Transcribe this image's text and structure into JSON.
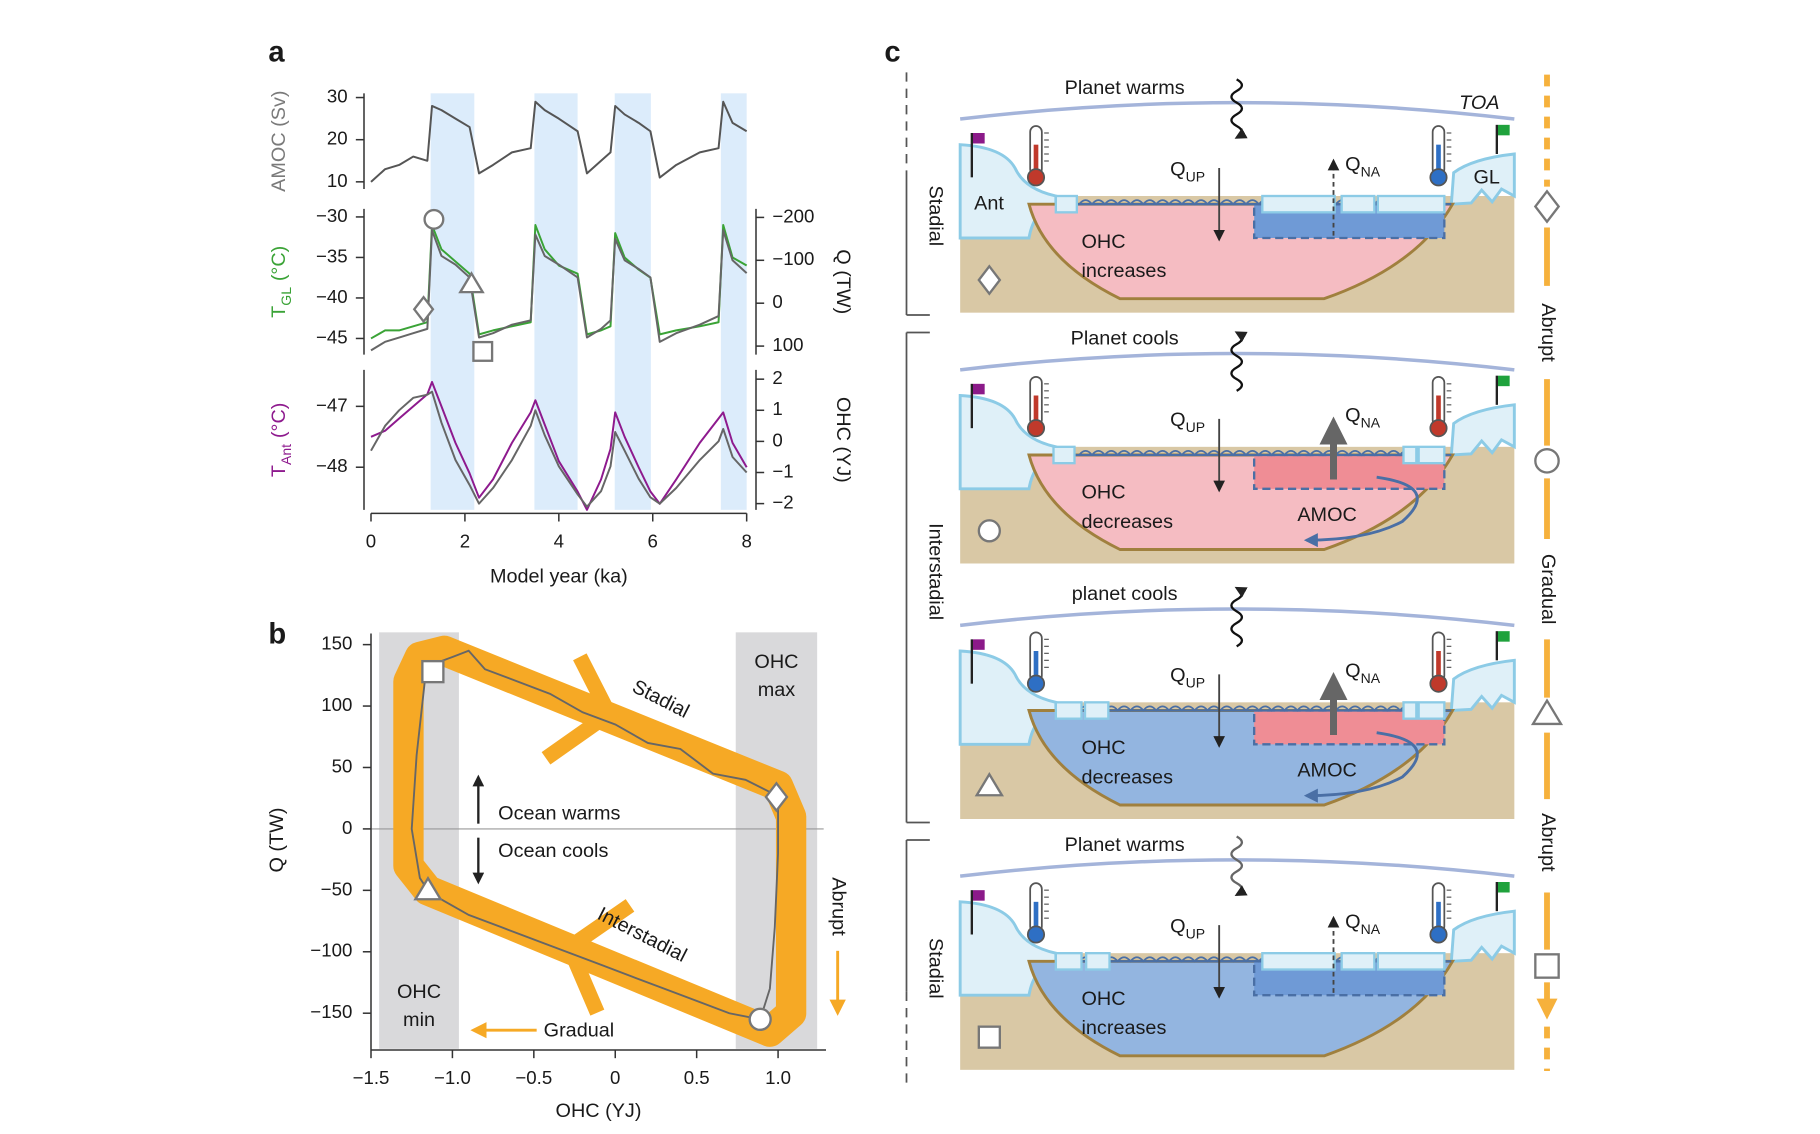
{
  "chart_data": [
    {
      "type": "line",
      "label": "a",
      "x": [
        0,
        0.3,
        0.6,
        0.9,
        1.2,
        1.3,
        1.5,
        1.8,
        2.1,
        2.3,
        2.6,
        3.0,
        3.4,
        3.5,
        3.7,
        4.0,
        4.4,
        4.6,
        4.9,
        5.1,
        5.2,
        5.4,
        5.7,
        5.95,
        6.15,
        6.5,
        7.0,
        7.4,
        7.5,
        7.7,
        8.0
      ],
      "xlim": [
        0,
        8
      ],
      "xticks": [
        0,
        2,
        4,
        6,
        8
      ],
      "xlabel": "Model year (ka)",
      "shaded": [
        [
          1.27,
          2.2
        ],
        [
          3.48,
          4.4
        ],
        [
          5.19,
          5.96
        ],
        [
          7.45,
          8.0
        ]
      ],
      "shade_color": "#dcecfb",
      "subplots": [
        {
          "ylabel": "AMOC (Sv)",
          "ylabel_color": "#7a7a7a",
          "ylim": [
            8.3,
            31
          ],
          "yticks": [
            10,
            20,
            30
          ],
          "series": [
            {
              "color": "#555555",
              "values": [
                10,
                13,
                14,
                16,
                15,
                28,
                27,
                25,
                23,
                12,
                14,
                17,
                18,
                29,
                27,
                25,
                22,
                12,
                15,
                17,
                28,
                26,
                24,
                22,
                11,
                14,
                17,
                18,
                29,
                24,
                22
              ]
            }
          ]
        },
        {
          "ylabel": {
            "text": "T",
            "sub": "GL",
            "unit": "(°C)"
          },
          "ylabel_color": "#3aa336",
          "ylim": [
            -47,
            -29
          ],
          "yticks": [
            {
              "value": -30,
              "label": "−30"
            },
            {
              "value": -35,
              "label": "−35"
            },
            {
              "value": -40,
              "label": "−40"
            },
            {
              "value": -45,
              "label": "−45"
            }
          ],
          "y2label": "Q (TW)",
          "y2lim": [
            120,
            -220
          ],
          "y2ticks": [
            {
              "value": -200,
              "label": "−200"
            },
            {
              "value": -100,
              "label": "−100"
            },
            0,
            100
          ],
          "series": [
            {
              "color": "#3aa336",
              "values": [
                -45,
                -44,
                -44,
                -43.5,
                -43,
                -31,
                -34,
                -35.5,
                -37,
                -44.5,
                -44,
                -43.5,
                -43,
                -31,
                -34,
                -36,
                -37,
                -44.5,
                -44,
                -43.5,
                -32,
                -35,
                -36.5,
                -37.5,
                -44.5,
                -44,
                -43.5,
                -43,
                -31,
                -35,
                -36
              ]
            },
            {
              "color": "#666666",
              "axis": "y2",
              "values": [
                110,
                90,
                80,
                70,
                60,
                -170,
                -110,
                -90,
                -60,
                80,
                70,
                50,
                40,
                -160,
                -110,
                -90,
                -60,
                80,
                60,
                40,
                -150,
                -100,
                -80,
                -60,
                90,
                70,
                50,
                30,
                -170,
                -100,
                -70
              ]
            }
          ],
          "markers": [
            {
              "shape": "circle",
              "x": 1.34,
              "y": -30.3
            },
            {
              "shape": "diamond",
              "x": 1.12,
              "y": -41.4
            },
            {
              "shape": "triangle",
              "x": 2.14,
              "y": -38.3
            },
            {
              "shape": "square",
              "x": 2.38,
              "y": -46.6
            }
          ]
        },
        {
          "ylabel": {
            "text": "T",
            "sub": "Ant",
            "unit": "(°C)"
          },
          "ylabel_color": "#8e1a8e",
          "ylim": [
            -48.7,
            -46.4
          ],
          "yticks": [
            {
              "value": -47,
              "label": "−47"
            },
            {
              "value": -48,
              "label": "−48"
            }
          ],
          "y2label": "OHC (YJ)",
          "y2lim": [
            -2.2,
            2.3
          ],
          "y2ticks": [
            2,
            1,
            0,
            {
              "value": -1,
              "label": "−1"
            },
            {
              "value": -2,
              "label": "−2"
            }
          ],
          "series": [
            {
              "color": "#8e1a8e",
              "values": [
                -47.5,
                -47.4,
                -47.2,
                -47.0,
                -46.8,
                -46.6,
                -47.0,
                -47.6,
                -48.1,
                -48.5,
                -48.2,
                -47.6,
                -47.1,
                -46.9,
                -47.3,
                -47.9,
                -48.4,
                -48.7,
                -48.2,
                -47.7,
                -47.1,
                -47.5,
                -48.0,
                -48.4,
                -48.6,
                -48.2,
                -47.6,
                -47.2,
                -47.1,
                -47.6,
                -48.0
              ]
            },
            {
              "color": "#666666",
              "axis": "y2",
              "values": [
                -0.3,
                0.5,
                1.0,
                1.4,
                1.5,
                1.6,
                0.6,
                -0.6,
                -1.4,
                -2.0,
                -1.5,
                -0.6,
                0.5,
                1.0,
                0.2,
                -0.8,
                -1.7,
                -2.1,
                -1.6,
                -0.8,
                0.3,
                -0.3,
                -1.2,
                -1.8,
                -2.0,
                -1.5,
                -0.6,
                0.0,
                0.4,
                -0.5,
                -1.0
              ]
            }
          ]
        }
      ]
    },
    {
      "type": "line",
      "label": "b",
      "xlabel": "OHC (YJ)",
      "ylabel": "Q (TW)",
      "xlim": [
        -1.5,
        1.28
      ],
      "ylim": [
        -179,
        160
      ],
      "xticks": [
        {
          "value": -1.5,
          "label": "−1.5"
        },
        {
          "value": -1,
          "label": "−1.0"
        },
        {
          "value": -0.5,
          "label": "−0.5"
        },
        0,
        0.5,
        {
          "value": 1,
          "label": "1.0"
        }
      ],
      "yticks": [
        150,
        100,
        50,
        0,
        {
          "value": -50,
          "label": "−50"
        },
        {
          "value": -100,
          "label": "−100"
        },
        {
          "value": -150,
          "label": "−150"
        }
      ],
      "hline": 0,
      "regions": [
        {
          "xlim": [
            -1.45,
            -0.96
          ],
          "label": [
            "OHC",
            "min"
          ]
        },
        {
          "xlim": [
            0.74,
            1.24
          ],
          "label": [
            "OHC",
            "max"
          ]
        }
      ],
      "region_color": "#d9d9db",
      "loop": {
        "color": "#f6a925",
        "x": [
          -1.2,
          -1.05,
          1.0,
          1.08,
          1.08,
          0.95,
          -1.15,
          -1.27,
          -1.27,
          -1.2
        ],
        "values": [
          140,
          145,
          35,
          10,
          -150,
          -165,
          -50,
          -30,
          120,
          140
        ]
      },
      "series": [
        {
          "color": "#666666",
          "x": [
            -1.15,
            -1.2,
            -1.25,
            -1.22,
            -1.17,
            -1.1,
            -1.0,
            -0.9,
            -0.8,
            -0.6,
            -0.4,
            -0.2,
            0,
            0.2,
            0.4,
            0.6,
            0.8,
            0.95,
            1.0,
            1.0,
            0.98,
            0.95,
            0.89,
            0.7,
            0.5,
            0.3,
            0.1,
            -0.1,
            -0.3,
            -0.5,
            -0.7,
            -0.9,
            -1.1,
            -1.15
          ],
          "values": [
            -50,
            -40,
            0,
            60,
            120,
            135,
            140,
            145,
            130,
            120,
            110,
            95,
            85,
            70,
            65,
            45,
            40,
            30,
            20,
            -20,
            -80,
            -130,
            -155,
            -150,
            -140,
            -130,
            -120,
            -110,
            -100,
            -90,
            -80,
            -70,
            -55,
            -50
          ]
        }
      ],
      "markers": [
        {
          "shape": "square",
          "x": -1.12,
          "y": 128
        },
        {
          "shape": "diamond",
          "x": 0.99,
          "y": 26
        },
        {
          "shape": "circle",
          "x": 0.89,
          "y": -155
        },
        {
          "shape": "triangle",
          "x": -1.15,
          "y": -50
        }
      ],
      "annotations": {
        "stadial": "Stadial",
        "interstadial": "Interstadial",
        "warms": "Ocean warms",
        "cools": "Ocean cools",
        "gradual": "Gradual",
        "abrupt": "Abrupt"
      }
    }
  ],
  "diagram": {
    "label": "c",
    "toa": "TOA",
    "ant": "Ant",
    "gl": "GL",
    "rows": [
      {
        "heading": "Planet warms",
        "q_up": {
          "text": "Q",
          "sub": "UP"
        },
        "q_na": {
          "text": "Q",
          "sub": "NA"
        },
        "ohc": [
          "OHC",
          "increases"
        ]
      },
      {
        "heading": "Planet cools",
        "q_up": {
          "text": "Q",
          "sub": "UP"
        },
        "q_na": {
          "text": "Q",
          "sub": "NA"
        },
        "ohc": [
          "OHC",
          "decreases"
        ],
        "amoc": "AMOC"
      },
      {
        "heading": "planet cools",
        "q_up": {
          "text": "Q",
          "sub": "UP"
        },
        "q_na": {
          "text": "Q",
          "sub": "NA"
        },
        "ohc": [
          "OHC",
          "decreases"
        ],
        "amoc": "AMOC"
      },
      {
        "heading": "Planet warms",
        "q_up": {
          "text": "Q",
          "sub": "UP"
        },
        "q_na": {
          "text": "Q",
          "sub": "NA"
        },
        "ohc": [
          "OHC",
          "increases"
        ]
      }
    ],
    "phases": [
      "Stadial",
      "Interstadial",
      "Stadial"
    ],
    "transitions": [
      "Abrupt",
      "Gradual",
      "Abrupt"
    ]
  }
}
